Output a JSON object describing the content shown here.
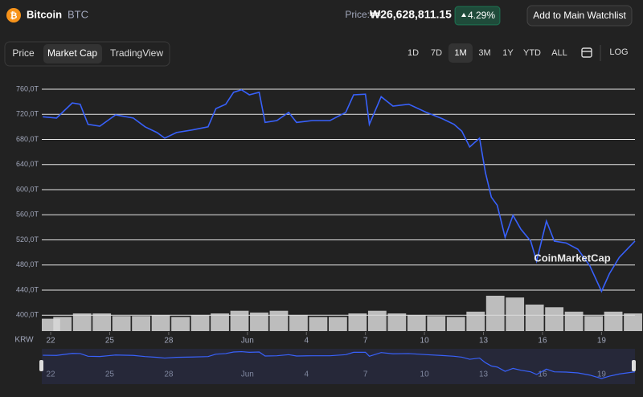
{
  "header": {
    "name": "Bitcoin",
    "symbol": "BTC",
    "price_label": "Price:",
    "price": "₩26,628,811.15",
    "change": "4.29%",
    "watchlist": "Add to Main Watchlist"
  },
  "tabs": [
    "Price",
    "Market Cap",
    "TradingView"
  ],
  "ranges": [
    "1D",
    "7D",
    "1M",
    "3M",
    "1Y",
    "YTD",
    "ALL"
  ],
  "log": "LOG",
  "currency": "KRW",
  "watermark": "CoinMarketCap",
  "chart_data": {
    "type": "line",
    "color": "#3861fb",
    "x": [
      -0.4,
      0.3,
      1.1,
      1.5,
      1.9,
      2.5,
      2.9,
      3.3,
      4.2,
      4.8,
      5.4,
      5.8,
      6.4,
      7.2,
      8.0,
      8.4,
      8.9,
      9.3,
      9.7,
      10.1,
      10.6,
      10.9,
      11.5,
      12.1,
      12.5,
      13.3,
      14.2,
      15.0,
      15.4,
      16.0,
      16.2,
      16.8,
      17.4,
      18.2,
      19.1,
      19.9,
      20.5,
      20.9,
      21.3,
      21.8,
      22.1,
      22.4,
      22.7,
      23.1,
      23.5,
      23.9,
      24.4,
      24.7,
      25.2,
      25.6,
      26.2,
      26.8,
      27.4,
      28.0,
      28.4,
      28.9,
      29.3,
      29.7
    ],
    "values": [
      716,
      714,
      738,
      736,
      704,
      701,
      710,
      719,
      714,
      700,
      691,
      682,
      691,
      695,
      700,
      729,
      736,
      755,
      759,
      751,
      755,
      707,
      710,
      723,
      707,
      710,
      710,
      723,
      751,
      752,
      704,
      748,
      733,
      736,
      723,
      713,
      704,
      693,
      668,
      682,
      627,
      588,
      575,
      524,
      559,
      537,
      518,
      486,
      550,
      518,
      515,
      505,
      479,
      438,
      466,
      492,
      505,
      518
    ],
    "volume": {
      "color": "#d8d8d8",
      "x": [
        -0.4,
        0.6,
        1.6,
        2.6,
        3.6,
        4.6,
        5.6,
        6.6,
        7.6,
        8.6,
        9.6,
        10.6,
        11.6,
        12.6,
        13.6,
        14.6,
        15.6,
        16.6,
        17.6,
        18.6,
        19.6,
        20.6,
        21.6,
        22.6,
        23.6,
        24.6,
        25.6,
        26.6,
        27.6,
        28.6,
        29.6
      ],
      "values": [
        14,
        16,
        20,
        20,
        17,
        17,
        18,
        16,
        18,
        20,
        23,
        21,
        23,
        18,
        16,
        16,
        20,
        23,
        20,
        18,
        17,
        16,
        22,
        40,
        38,
        30,
        27,
        22,
        17,
        22,
        20
      ]
    },
    "xlim": [
      -0.45,
      29.7
    ],
    "xticks": [
      {
        "value": 0,
        "label": "22"
      },
      {
        "value": 3,
        "label": "25"
      },
      {
        "value": 6,
        "label": "28"
      },
      {
        "value": 10,
        "label": "Jun"
      },
      {
        "value": 13,
        "label": "4"
      },
      {
        "value": 16,
        "label": "7"
      },
      {
        "value": 19,
        "label": "10"
      },
      {
        "value": 22,
        "label": "13"
      },
      {
        "value": 25,
        "label": "16"
      },
      {
        "value": 28,
        "label": "19"
      }
    ],
    "ylim": [
      390,
      774
    ],
    "yticks": [
      {
        "value": 400,
        "label": "400,0T"
      },
      {
        "value": 440,
        "label": "440,0T"
      },
      {
        "value": 480,
        "label": "480,0T"
      },
      {
        "value": 520,
        "label": "520,0T"
      },
      {
        "value": 560,
        "label": "560,0T"
      },
      {
        "value": 600,
        "label": "600,0T"
      },
      {
        "value": 640,
        "label": "640,0T"
      },
      {
        "value": 680,
        "label": "680,0T"
      },
      {
        "value": 720,
        "label": "720,0T"
      },
      {
        "value": 760,
        "label": "760,0T"
      }
    ],
    "grid": true
  }
}
